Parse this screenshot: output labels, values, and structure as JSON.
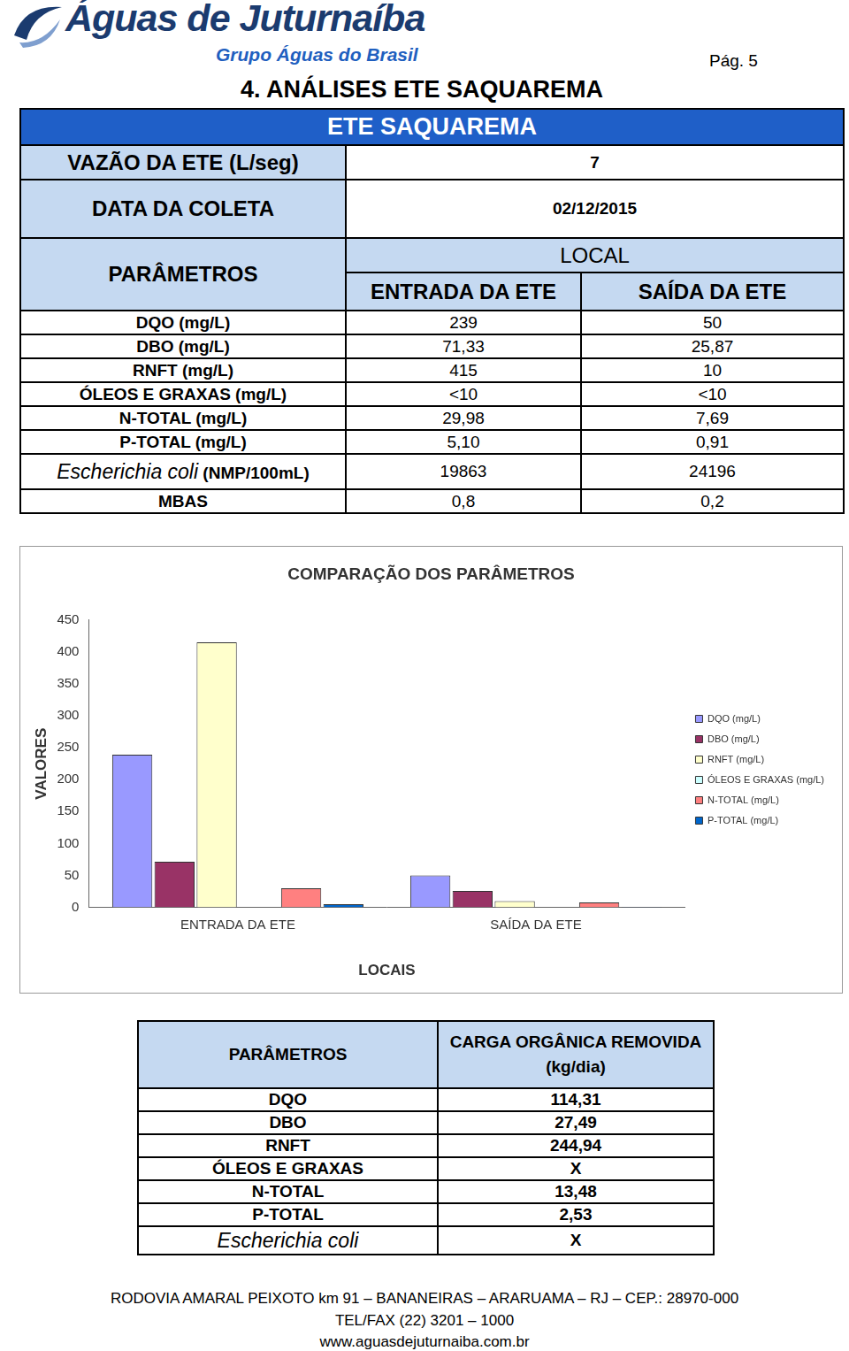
{
  "header": {
    "logo_title": "Águas de Juturnaíba",
    "logo_subtitle": "Grupo Águas do Brasil",
    "page": "Pág. 5",
    "title": "4. ANÁLISES ETE SAQUAREMA"
  },
  "table": {
    "title": "ETE SAQUAREMA",
    "flow_label": "VAZÃO DA ETE (L/seg)",
    "flow_value": "7",
    "date_label": "DATA DA COLETA",
    "date_value": "02/12/2015",
    "param_header": "PARÂMETROS",
    "local_header": "LOCAL",
    "columns": [
      "ENTRADA DA ETE",
      "SAÍDA DA ETE"
    ],
    "rows": [
      {
        "label": "DQO (mg/L)",
        "values": [
          "239",
          "50"
        ]
      },
      {
        "label": "DBO (mg/L)",
        "values": [
          "71,33",
          "25,87"
        ]
      },
      {
        "label": "RNFT (mg/L)",
        "values": [
          "415",
          "10"
        ]
      },
      {
        "label": "ÓLEOS E GRAXAS (mg/L)",
        "values": [
          "<10",
          "<10"
        ]
      },
      {
        "label": "N-TOTAL (mg/L)",
        "values": [
          "29,98",
          "7,69"
        ]
      },
      {
        "label": "P-TOTAL (mg/L)",
        "values": [
          "5,10",
          "0,91"
        ]
      },
      {
        "italic": "Escherichia coli",
        "label": "(NMP/100mL)",
        "values": [
          "19863",
          "24196"
        ]
      },
      {
        "label": "MBAS",
        "values": [
          "0,8",
          "0,2"
        ]
      }
    ]
  },
  "chart_data": {
    "type": "bar",
    "title": "COMPARAÇÃO DOS PARÂMETROS",
    "x_label": "LOCAIS",
    "y_label": "VALORES",
    "categories": [
      "ENTRADA DA ETE",
      "SAÍDA DA ETE"
    ],
    "series": [
      {
        "name": "DQO (mg/L)",
        "color": "#9999ff",
        "values": [
          239,
          50
        ]
      },
      {
        "name": "DBO (mg/L)",
        "color": "#993366",
        "values": [
          71.33,
          25.87
        ]
      },
      {
        "name": "RNFT (mg/L)",
        "color": "#ffffcc",
        "values": [
          415,
          10
        ]
      },
      {
        "name": "ÓLEOS E GRAXAS (mg/L)",
        "color": "#ccffff",
        "values": [
          0,
          0
        ]
      },
      {
        "name": "N-TOTAL (mg/L)",
        "color": "#ff8080",
        "values": [
          29.98,
          7.69
        ]
      },
      {
        "name": "P-TOTAL (mg/L)",
        "color": "#0066cc",
        "values": [
          5.1,
          0.91
        ]
      }
    ],
    "ylim": [
      0,
      450
    ],
    "yticks": [
      0,
      50,
      100,
      150,
      200,
      250,
      300,
      350,
      400,
      450
    ],
    "grid": false,
    "legend": "right"
  },
  "removal_table": {
    "header": [
      "PARÂMETROS",
      [
        "CARGA ORGÂNICA REMOVIDA",
        "(kg/dia)"
      ]
    ],
    "rows": [
      {
        "label": "DQO",
        "value": "114,31"
      },
      {
        "label": "DBO",
        "value": "27,49"
      },
      {
        "label": "RNFT",
        "value": "244,94"
      },
      {
        "label": "ÓLEOS E GRAXAS",
        "value": "X"
      },
      {
        "label": "N-TOTAL",
        "value": "13,48"
      },
      {
        "label": "P-TOTAL",
        "value": "2,53"
      },
      {
        "label": "Escherichia coli",
        "value": "X",
        "italic": true
      }
    ]
  },
  "footer": [
    "RODOVIA AMARAL PEIXOTO km 91 – BANANEIRAS – ARARUAMA – RJ – CEP.: 28970-000",
    "TEL/FAX (22) 3201 – 1000",
    "www.aguasdejuturnaiba.com.br"
  ]
}
